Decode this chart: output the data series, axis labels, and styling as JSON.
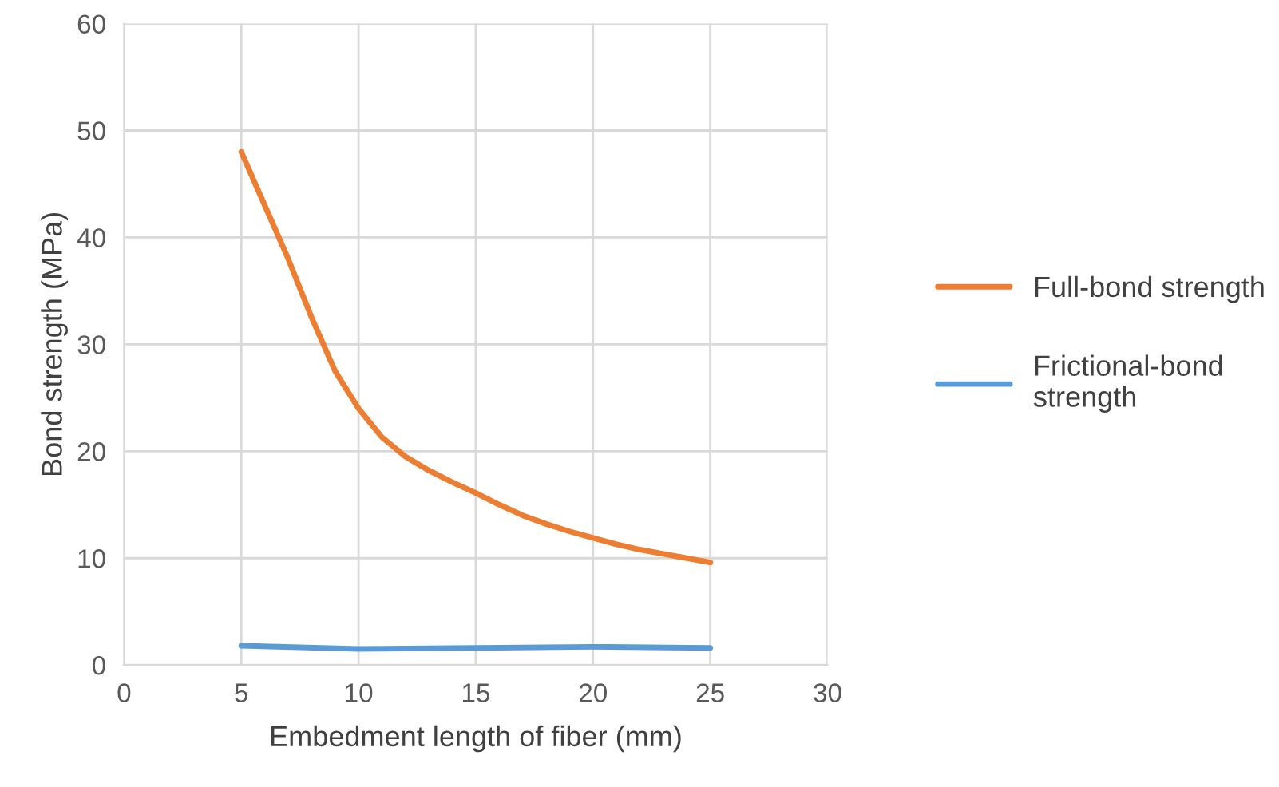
{
  "chart_data": {
    "type": "line",
    "xlabel": "Embedment length of fiber (mm)",
    "ylabel": "Bond strength (MPa)",
    "x": [
      5,
      10,
      15,
      20,
      25
    ],
    "series": [
      {
        "name": "Full-bond strength",
        "color": "#ed7d31",
        "x": [
          5,
          6,
          7,
          8,
          9,
          10,
          11,
          12,
          13,
          14,
          15,
          16,
          17,
          18,
          19,
          20,
          21,
          22,
          23,
          24,
          25
        ],
        "values": [
          48,
          43,
          38,
          32.5,
          27.5,
          24,
          21.3,
          19.5,
          18.2,
          17.1,
          16.1,
          15,
          14,
          13.2,
          12.5,
          11.9,
          11.3,
          10.8,
          10.4,
          10,
          9.6
        ]
      },
      {
        "name": "Frictional-bond\nstrength",
        "color": "#5b9bd5",
        "values": [
          1.8,
          1.5,
          1.6,
          1.7,
          1.6
        ]
      }
    ],
    "xlim": [
      0,
      30
    ],
    "xticks": [
      0,
      5,
      10,
      15,
      20,
      25,
      30
    ],
    "ylim": [
      0,
      60
    ],
    "yticks": [
      0,
      10,
      20,
      30,
      40,
      50,
      60
    ],
    "grid": true,
    "legend": "right",
    "marker": "none",
    "line_style": "solid"
  }
}
